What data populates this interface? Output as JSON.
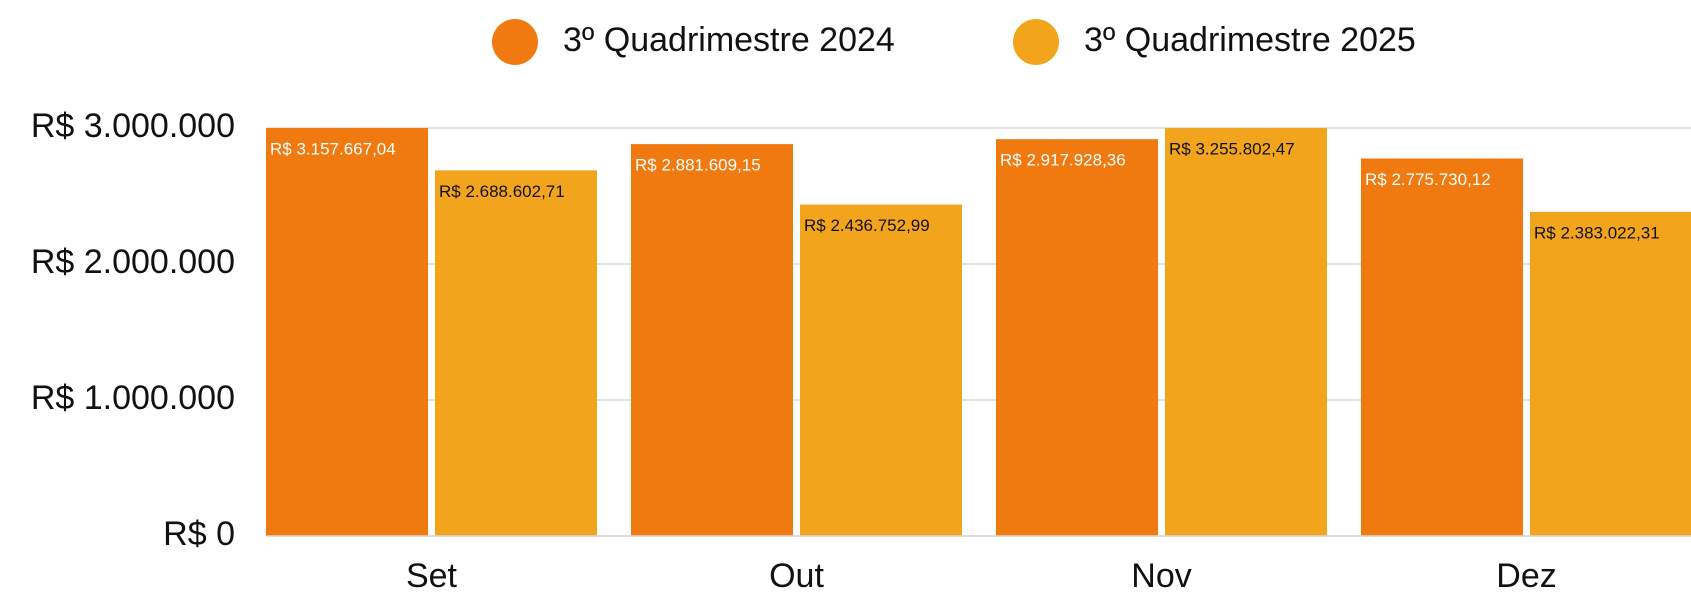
{
  "chart_data": {
    "type": "bar",
    "categories": [
      "Set",
      "Out",
      "Nov",
      "Dez"
    ],
    "series": [
      {
        "name": "3º Quadrimestre 2024",
        "color": "#f07a10",
        "values": [
          3157667.04,
          2881609.15,
          2917928.36,
          2775730.12
        ],
        "value_labels": [
          "R$ 3.157.667,04",
          "R$ 2.881.609,15",
          "R$ 2.917.928,36",
          "R$ 2.775.730,12"
        ]
      },
      {
        "name": "3º Quadrimestre 2025",
        "color": "#f2a51c",
        "values": [
          2688602.71,
          2436752.99,
          3255802.47,
          2383022.31
        ],
        "value_labels": [
          "R$ 2.688.602,71",
          "R$ 2.436.752,99",
          "R$ 3.255.802,47",
          "R$ 2.383.022,31"
        ]
      }
    ],
    "ylim": [
      0,
      3000000
    ],
    "yticks": [
      {
        "value": 0,
        "label": "R$ 0"
      },
      {
        "value": 1000000,
        "label": "R$ 1.000.000"
      },
      {
        "value": 2000000,
        "label": "R$ 2.000.000"
      },
      {
        "value": 3000000,
        "label": "R$ 3.000.000"
      }
    ],
    "grid": true,
    "legend": "top"
  }
}
